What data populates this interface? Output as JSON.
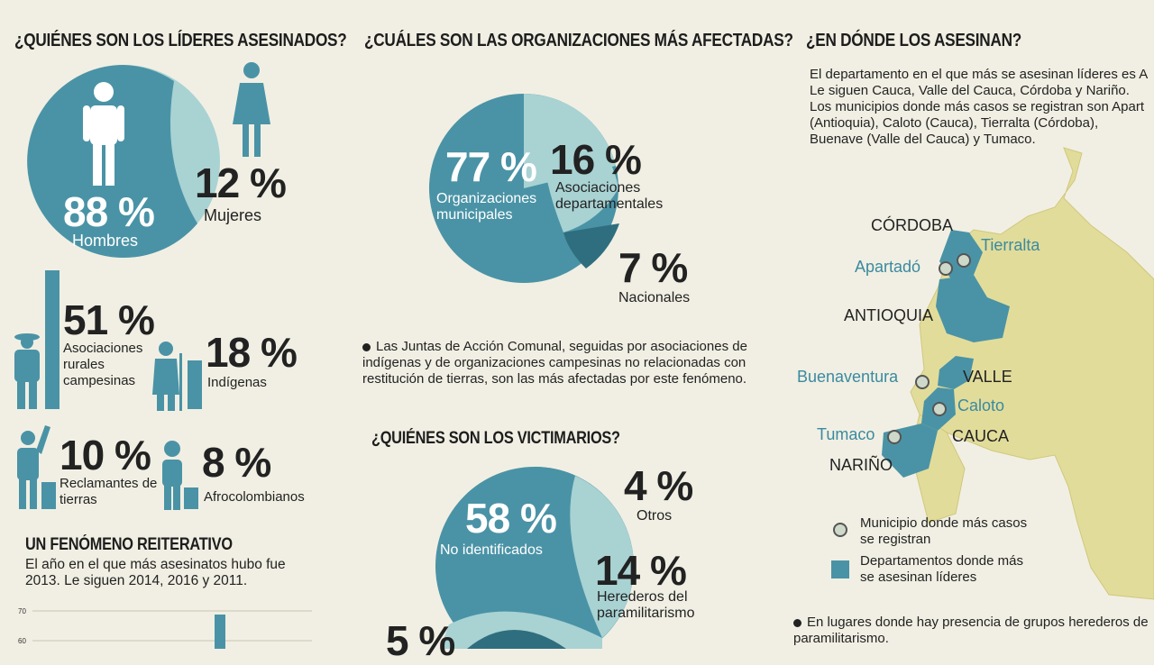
{
  "colors": {
    "dark": "#4a93a6",
    "light": "#a9d2d3",
    "darker": "#2f6e7f",
    "map_land": "#e2dc9b",
    "map_dept": "#4a93a6",
    "bg": "#f1efe3"
  },
  "col1": {
    "title": "¿QUIÉNES SON LOS LÍDERES ASESINADOS?",
    "men": {
      "pct": "88 %",
      "label": "Hombres"
    },
    "women": {
      "pct": "12 %",
      "label": "Mujeres"
    },
    "rural": {
      "pct": "51 %",
      "label": "Asociaciones rurales campesinas"
    },
    "indig": {
      "pct": "18 %",
      "label": "Indígenas"
    },
    "reclam": {
      "pct": "10 %",
      "label": "Reclamantes de tierras"
    },
    "afro": {
      "pct": "8 %",
      "label": "Afrocolombianos"
    },
    "trend_title": "UN FENÓMENO REITERATIVO",
    "trend_text": "El año en el que más asesinatos hubo fue 2013. Le siguen 2014, 2016 y 2011."
  },
  "col2": {
    "title": "¿CUÁLES SON LAS ORGANIZACIONES MÁS AFECTADAS?",
    "org_mun": {
      "pct": "77 %",
      "label": "Organizaciones municipales"
    },
    "org_dep": {
      "pct": "16 %",
      "label": "Asociaciones departamentales"
    },
    "org_nac": {
      "pct": "7 %",
      "label": "Nacionales"
    },
    "note": "Las Juntas de Acción Comunal, seguidas por asociaciones de indígenas y de organizaciones campesinas no relacionadas con restitución de tierras, son las más afectadas por este fenómeno.",
    "vict_title": "¿QUIÉNES SON LOS VICTIMARIOS?",
    "noid": {
      "pct": "58 %",
      "label": "No identificados"
    },
    "otros": {
      "pct": "4 %",
      "label": "Otros"
    },
    "hered": {
      "pct": "14 %",
      "label": "Herederos del paramilitarismo"
    },
    "five": {
      "pct": "5 %"
    }
  },
  "col3": {
    "title": "¿EN DÓNDE LOS ASESINAN?",
    "text": "El departamento en el que más se asesinan líderes es A Le siguen Cauca, Valle del Cauca, Córdoba y Nariño. Los municipios donde más casos se registran son Apart (Antioquia), Caloto (Cauca), Tierralta (Córdoba), Buenave (Valle del Cauca) y Tumaco.",
    "depts": {
      "cordoba": "CÓRDOBA",
      "antioquia": "ANTIOQUIA",
      "valle": "VALLE",
      "cauca": "CAUCA",
      "narino": "NARIÑO"
    },
    "cities": {
      "tierralta": "Tierralta",
      "apartado": "Apartadó",
      "buenaventura": "Buenaventura",
      "caloto": "Caloto",
      "tumaco": "Tumaco"
    },
    "legend_mun": "Municipio donde más casos se registran",
    "legend_dep": "Departamentos donde más se asesinan líderes",
    "note": "En lugares donde hay presencia de grupos herederos de paramilitarismo."
  },
  "chart_data": [
    {
      "type": "pie",
      "title": "¿QUIÉNES SON LOS LÍDERES ASESINADOS?",
      "categories": [
        "Hombres",
        "Mujeres"
      ],
      "values": [
        88,
        12
      ]
    },
    {
      "type": "bar",
      "categories": [
        "Asociaciones rurales campesinas",
        "Indígenas",
        "Reclamantes de tierras",
        "Afrocolombianos"
      ],
      "values": [
        51,
        18,
        10,
        8
      ]
    },
    {
      "type": "pie",
      "title": "¿CUÁLES SON LAS ORGANIZACIONES MÁS AFECTADAS?",
      "categories": [
        "Organizaciones municipales",
        "Asociaciones departamentales",
        "Nacionales"
      ],
      "values": [
        77,
        16,
        7
      ]
    },
    {
      "type": "pie",
      "title": "¿QUIÉNES SON LOS VICTIMARIOS?",
      "categories": [
        "No identificados",
        "Otros",
        "Herederos del paramilitarismo"
      ],
      "values": [
        58,
        4,
        14
      ],
      "note": "other visible value: 5 %"
    },
    {
      "type": "bar",
      "title": "UN FENÓMENO REITERATIVO",
      "yticks": [
        70,
        60
      ],
      "ylim": [
        55,
        70
      ],
      "values": [
        69
      ]
    }
  ]
}
